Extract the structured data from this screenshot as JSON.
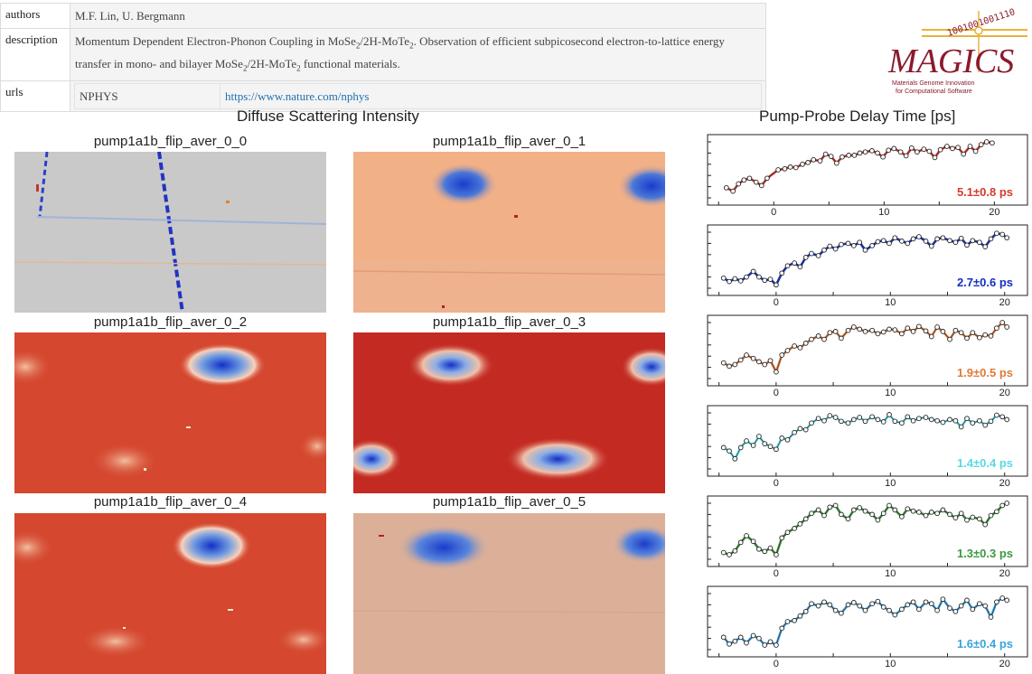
{
  "metadata": {
    "authors_label": "authors",
    "authors_value": "M.F. Lin, U. Bergmann",
    "description_label": "description",
    "description_part1": "Momentum Dependent Electron-Phonon Coupling in MoSe",
    "description_part2": "/2H-MoTe",
    "description_part3": ". Observation of efficient subpicosecond electron-to-lattice energy transfer in mono- and bilayer MoSe",
    "description_part4": "/2H-MoTe",
    "description_part5": " functional materials.",
    "sub_two": "2",
    "urls_label": "urls",
    "url_name": "NPHYS",
    "url_link": "https://www.nature.com/nphys"
  },
  "logo": {
    "top_digits": "1001001001110",
    "word": "MAGICS",
    "tagline1": "Materials Genome Innovation",
    "tagline2": "for Computational Software",
    "color": "#8b1a2b"
  },
  "diffuse": {
    "title": "Diffuse Scattering Intensity",
    "panels": [
      {
        "label": "pump1a1b_flip_aver_0_0"
      },
      {
        "label": "pump1a1b_flip_aver_0_1"
      },
      {
        "label": "pump1a1b_flip_aver_0_2"
      },
      {
        "label": "pump1a1b_flip_aver_0_3"
      },
      {
        "label": "pump1a1b_flip_aver_0_4"
      },
      {
        "label": "pump1a1b_flip_aver_0_5"
      }
    ]
  },
  "delay": {
    "title": "Pump-Probe Delay Time [ps]"
  },
  "chart_data": [
    {
      "type": "line",
      "annotation": "5.1±0.8 ps",
      "color": "#d63a2e",
      "x_ticks": [
        "0",
        "10",
        "20"
      ],
      "xlim": [
        -6,
        23
      ],
      "x": [
        -4.3,
        -3.7,
        -3.2,
        -2.7,
        -2.2,
        -1.6,
        -1.1,
        -0.6,
        0.4,
        1.0,
        1.5,
        2.0,
        2.6,
        3.1,
        3.6,
        4.2,
        4.7,
        5.2,
        5.7,
        6.2,
        6.8,
        7.3,
        7.8,
        8.3,
        8.9,
        9.4,
        9.9,
        10.4,
        10.9,
        11.5,
        12.0,
        12.5,
        13.0,
        13.6,
        14.1,
        14.6,
        15.1,
        15.7,
        16.2,
        16.7,
        17.2,
        17.8,
        18.3,
        18.8,
        19.3,
        19.8
      ],
      "y": [
        0.18,
        0.12,
        0.25,
        0.32,
        0.35,
        0.28,
        0.22,
        0.35,
        0.5,
        0.52,
        0.55,
        0.54,
        0.6,
        0.63,
        0.68,
        0.66,
        0.78,
        0.74,
        0.62,
        0.73,
        0.76,
        0.76,
        0.8,
        0.82,
        0.84,
        0.8,
        0.73,
        0.85,
        0.88,
        0.82,
        0.75,
        0.89,
        0.82,
        0.87,
        0.83,
        0.72,
        0.86,
        0.92,
        0.88,
        0.9,
        0.78,
        0.92,
        0.83,
        0.95,
        1.0,
        0.98
      ]
    },
    {
      "type": "line",
      "annotation": "2.7±0.6 ps",
      "color": "#1530c4",
      "x_ticks": [
        "0",
        "10",
        "20"
      ],
      "xlim": [
        -6,
        22
      ],
      "x": [
        -4.6,
        -4.1,
        -3.6,
        -3.1,
        -2.6,
        -2.0,
        -1.5,
        -1.0,
        -0.5,
        0.0,
        0.5,
        1.0,
        1.6,
        2.1,
        2.6,
        3.1,
        3.7,
        4.2,
        4.7,
        5.2,
        5.7,
        6.3,
        6.8,
        7.3,
        7.8,
        8.4,
        8.9,
        9.4,
        9.9,
        10.4,
        11.0,
        11.5,
        12.0,
        12.5,
        13.1,
        13.6,
        14.1,
        14.6,
        15.2,
        15.7,
        16.2,
        16.7,
        17.2,
        17.8,
        18.3,
        18.8,
        19.3,
        19.8,
        20.2
      ],
      "y": [
        0.18,
        0.12,
        0.17,
        0.13,
        0.2,
        0.3,
        0.2,
        0.14,
        0.16,
        0.06,
        0.27,
        0.4,
        0.45,
        0.38,
        0.55,
        0.62,
        0.58,
        0.68,
        0.75,
        0.7,
        0.78,
        0.8,
        0.76,
        0.82,
        0.68,
        0.76,
        0.83,
        0.85,
        0.8,
        0.9,
        0.84,
        0.8,
        0.88,
        0.92,
        0.84,
        0.75,
        0.88,
        0.9,
        0.85,
        0.82,
        0.89,
        0.77,
        0.85,
        0.82,
        0.74,
        0.88,
        0.98,
        0.96,
        0.9
      ]
    },
    {
      "type": "line",
      "annotation": "1.9±0.5 ps",
      "color": "#e07b39",
      "x_ticks": [
        "0",
        "10",
        "20"
      ],
      "xlim": [
        -6,
        22
      ],
      "x": [
        -4.6,
        -4.1,
        -3.6,
        -3.1,
        -2.6,
        -2.0,
        -1.5,
        -1.0,
        -0.5,
        0.0,
        0.5,
        1.0,
        1.6,
        2.1,
        2.6,
        3.1,
        3.7,
        4.2,
        4.7,
        5.2,
        5.7,
        6.3,
        6.8,
        7.3,
        7.8,
        8.4,
        8.9,
        9.4,
        9.9,
        10.4,
        11.0,
        11.5,
        12.0,
        12.5,
        13.1,
        13.6,
        14.1,
        14.6,
        15.2,
        15.7,
        16.2,
        16.7,
        17.2,
        17.8,
        18.3,
        18.8,
        19.3,
        19.8,
        20.2
      ],
      "y": [
        0.28,
        0.22,
        0.25,
        0.33,
        0.42,
        0.36,
        0.3,
        0.25,
        0.32,
        0.12,
        0.42,
        0.5,
        0.58,
        0.55,
        0.63,
        0.7,
        0.76,
        0.7,
        0.82,
        0.84,
        0.72,
        0.86,
        0.92,
        0.88,
        0.84,
        0.86,
        0.8,
        0.83,
        0.88,
        0.87,
        0.8,
        0.9,
        0.84,
        0.93,
        0.85,
        0.75,
        0.92,
        0.84,
        0.7,
        0.86,
        0.82,
        0.72,
        0.82,
        0.73,
        0.78,
        0.76,
        0.9,
        1.0,
        0.92
      ]
    },
    {
      "type": "line",
      "annotation": "1.4±0.4 ps",
      "color": "#5ad8e6",
      "x_ticks": [
        "0",
        "10",
        "20"
      ],
      "xlim": [
        -6,
        22
      ],
      "x": [
        -4.6,
        -4.1,
        -3.6,
        -3.1,
        -2.6,
        -2.0,
        -1.5,
        -1.0,
        -0.5,
        0.0,
        0.5,
        1.0,
        1.6,
        2.1,
        2.6,
        3.1,
        3.7,
        4.2,
        4.7,
        5.2,
        5.7,
        6.3,
        6.8,
        7.3,
        7.8,
        8.4,
        8.9,
        9.4,
        9.9,
        10.4,
        11.0,
        11.5,
        12.0,
        12.5,
        13.1,
        13.6,
        14.1,
        14.6,
        15.2,
        15.7,
        16.2,
        16.7,
        17.2,
        17.8,
        18.3,
        18.8,
        19.3,
        19.8,
        20.2
      ],
      "y": [
        0.38,
        0.32,
        0.18,
        0.38,
        0.5,
        0.42,
        0.58,
        0.45,
        0.4,
        0.35,
        0.55,
        0.52,
        0.65,
        0.72,
        0.7,
        0.82,
        0.9,
        0.86,
        0.95,
        0.92,
        0.85,
        0.82,
        0.88,
        0.92,
        0.85,
        0.93,
        0.88,
        0.84,
        0.97,
        0.85,
        0.82,
        0.93,
        0.86,
        0.9,
        0.92,
        0.88,
        0.86,
        0.83,
        0.88,
        0.86,
        0.75,
        0.9,
        0.82,
        0.86,
        0.78,
        0.85,
        0.96,
        0.93,
        0.88
      ]
    },
    {
      "type": "line",
      "annotation": "1.3±0.3 ps",
      "color": "#3d9a3d",
      "x_ticks": [
        "0",
        "10",
        "20"
      ],
      "xlim": [
        -6,
        22
      ],
      "x": [
        -4.6,
        -4.1,
        -3.6,
        -3.1,
        -2.6,
        -2.0,
        -1.5,
        -1.0,
        -0.5,
        0.0,
        0.5,
        1.0,
        1.6,
        2.1,
        2.6,
        3.1,
        3.7,
        4.2,
        4.7,
        5.2,
        5.7,
        6.3,
        6.8,
        7.3,
        7.8,
        8.4,
        8.9,
        9.4,
        9.9,
        10.4,
        11.0,
        11.5,
        12.0,
        12.5,
        13.1,
        13.6,
        14.1,
        14.6,
        15.2,
        15.7,
        16.2,
        16.7,
        17.2,
        17.8,
        18.3,
        18.8,
        19.3,
        19.8,
        20.2
      ],
      "y": [
        0.12,
        0.08,
        0.15,
        0.3,
        0.42,
        0.32,
        0.18,
        0.14,
        0.2,
        0.08,
        0.38,
        0.48,
        0.55,
        0.63,
        0.72,
        0.82,
        0.88,
        0.78,
        0.93,
        0.96,
        0.8,
        0.72,
        0.88,
        0.92,
        0.86,
        0.8,
        0.7,
        0.82,
        0.96,
        0.88,
        0.76,
        0.9,
        0.86,
        0.84,
        0.78,
        0.84,
        0.82,
        0.88,
        0.8,
        0.74,
        0.82,
        0.7,
        0.75,
        0.72,
        0.62,
        0.78,
        0.85,
        0.96,
        1.0
      ]
    },
    {
      "type": "line",
      "annotation": "1.6±0.4 ps",
      "color": "#3aa3df",
      "x_ticks": [
        "0",
        "10",
        "20"
      ],
      "xlim": [
        -6,
        22
      ],
      "x": [
        -4.6,
        -4.1,
        -3.6,
        -3.1,
        -2.6,
        -2.0,
        -1.5,
        -1.0,
        -0.5,
        0.0,
        0.5,
        1.0,
        1.6,
        2.1,
        2.6,
        3.1,
        3.7,
        4.2,
        4.7,
        5.2,
        5.7,
        6.3,
        6.8,
        7.3,
        7.8,
        8.4,
        8.9,
        9.4,
        9.9,
        10.4,
        11.0,
        11.5,
        12.0,
        12.5,
        13.1,
        13.6,
        14.1,
        14.6,
        15.2,
        15.7,
        16.2,
        16.7,
        17.2,
        17.8,
        18.3,
        18.8,
        19.3,
        19.8,
        20.2
      ],
      "y": [
        0.22,
        0.1,
        0.15,
        0.22,
        0.12,
        0.25,
        0.2,
        0.08,
        0.14,
        0.08,
        0.38,
        0.5,
        0.52,
        0.6,
        0.68,
        0.82,
        0.78,
        0.85,
        0.8,
        0.7,
        0.65,
        0.8,
        0.84,
        0.78,
        0.7,
        0.82,
        0.86,
        0.76,
        0.7,
        0.62,
        0.72,
        0.8,
        0.85,
        0.72,
        0.85,
        0.82,
        0.7,
        0.9,
        0.74,
        0.68,
        0.78,
        0.88,
        0.72,
        0.82,
        0.78,
        0.58,
        0.85,
        0.92,
        0.88
      ]
    }
  ]
}
